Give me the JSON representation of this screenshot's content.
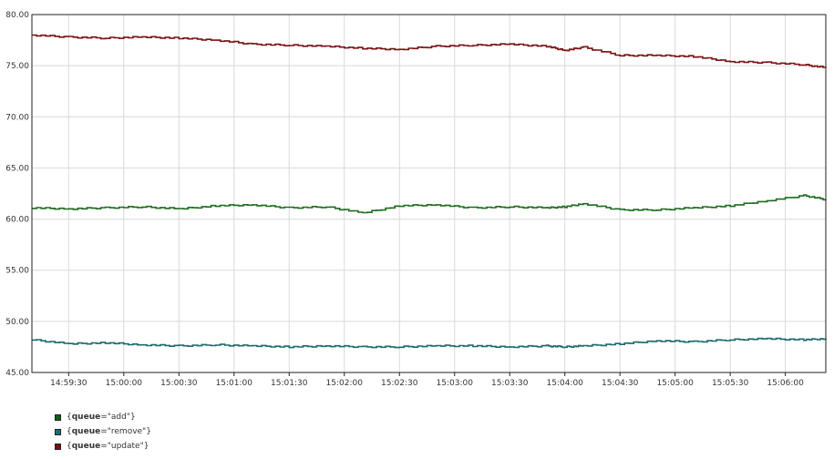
{
  "chart_data": {
    "type": "line",
    "grid": true,
    "legend_position": "bottom-left",
    "ylim": [
      45.0,
      80.0
    ],
    "y_ticks": [
      "45.00",
      "50.00",
      "55.00",
      "60.00",
      "65.00",
      "70.00",
      "75.00",
      "80.00"
    ],
    "x_ticks": [
      "14:59:30",
      "15:00:00",
      "15:00:30",
      "15:01:00",
      "15:01:30",
      "15:02:00",
      "15:02:30",
      "15:03:00",
      "15:03:30",
      "15:04:00",
      "15:04:30",
      "15:05:00",
      "15:05:30",
      "15:06:00"
    ],
    "x_range_seconds": [
      -20,
      412
    ],
    "series": [
      {
        "name": "{queue=\"add\"}",
        "legend_open": "{",
        "legend_key": "queue",
        "legend_value": "=\"add\"}",
        "color": "#1f6b1f",
        "swatch": "#0b5e14",
        "x": [
          -20,
          0,
          20,
          40,
          60,
          80,
          100,
          120,
          140,
          160,
          180,
          200,
          220,
          240,
          260,
          270,
          280,
          300,
          320,
          340,
          360,
          380,
          400,
          412
        ],
        "y": [
          61.1,
          61.0,
          61.1,
          61.2,
          61.0,
          61.3,
          61.4,
          61.1,
          61.2,
          60.6,
          61.3,
          61.4,
          61.1,
          61.2,
          61.1,
          61.2,
          61.5,
          60.9,
          60.9,
          61.1,
          61.3,
          61.8,
          62.3,
          61.9
        ]
      },
      {
        "name": "{queue=\"remove\"}",
        "legend_open": "{",
        "legend_key": "queue",
        "legend_value": "=\"remove\"}",
        "color": "#1a6a6a",
        "swatch": "#1b6f7a",
        "x": [
          -20,
          0,
          20,
          40,
          60,
          80,
          100,
          120,
          140,
          160,
          180,
          200,
          220,
          240,
          260,
          270,
          280,
          300,
          320,
          340,
          360,
          380,
          400,
          412
        ],
        "y": [
          48.2,
          47.8,
          47.9,
          47.7,
          47.6,
          47.7,
          47.6,
          47.5,
          47.6,
          47.5,
          47.5,
          47.6,
          47.6,
          47.5,
          47.6,
          47.5,
          47.6,
          47.8,
          48.1,
          48.0,
          48.2,
          48.3,
          48.2,
          48.3
        ]
      },
      {
        "name": "{queue=\"update\"}",
        "legend_open": "{",
        "legend_key": "queue",
        "legend_value": "=\"update\"}",
        "color": "#7a1010",
        "swatch": "#7a0d0d",
        "x": [
          -20,
          0,
          20,
          40,
          60,
          80,
          100,
          120,
          140,
          160,
          180,
          200,
          220,
          240,
          260,
          270,
          280,
          300,
          320,
          340,
          360,
          380,
          400,
          412
        ],
        "y": [
          78.0,
          77.8,
          77.7,
          77.8,
          77.7,
          77.5,
          77.1,
          77.0,
          76.9,
          76.7,
          76.6,
          76.9,
          77.0,
          77.1,
          76.9,
          76.5,
          76.8,
          76.0,
          76.0,
          75.9,
          75.4,
          75.3,
          75.1,
          74.8
        ]
      }
    ]
  }
}
